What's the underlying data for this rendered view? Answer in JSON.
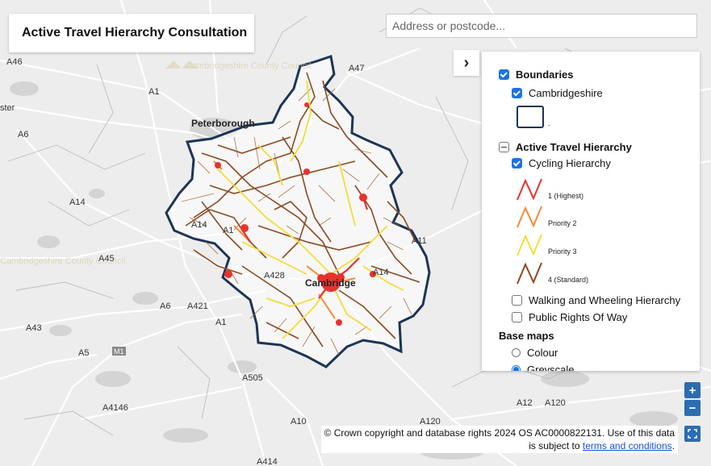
{
  "title": "Active Travel Hierarchy Consultation",
  "search": {
    "placeholder": "Address or postcode..."
  },
  "panel": {
    "collapse_icon": "›",
    "boundaries": {
      "label": "Boundaries",
      "checked": true,
      "items": [
        {
          "label": "Cambridgeshire",
          "checked": true
        }
      ]
    },
    "boundary_swatch_label": ".",
    "active_travel": {
      "label": "Active Travel Hierarchy",
      "state": "partial",
      "cycling": {
        "label": "Cycling Hierarchy",
        "checked": true,
        "legend": [
          {
            "label": "1 (Highest)",
            "color": "#e8322c"
          },
          {
            "label": "Priority 2",
            "color": "#f58a37"
          },
          {
            "label": "Priority 3",
            "color": "#f3dd3a"
          },
          {
            "label": "4 (Standard)",
            "color": "#8b4a22"
          }
        ]
      },
      "walking": {
        "label": "Walking and Wheeling Hierarchy",
        "checked": false
      },
      "prow": {
        "label": "Public Rights Of Way",
        "checked": false
      }
    },
    "base_maps": {
      "label": "Base maps",
      "options": [
        {
          "label": "Colour",
          "selected": false
        },
        {
          "label": "Greyscale",
          "selected": true
        }
      ]
    }
  },
  "map": {
    "labels": {
      "a46": "A46",
      "a47": "A47",
      "a1_n": "A1",
      "ster": "ster",
      "a6_n": "A6",
      "peterborough": "Peterborough",
      "a14_w": "A14",
      "a14_c": "A14",
      "a1_c": "A1",
      "a45": "A45",
      "a428": "A428",
      "cambridge": "Cambridge",
      "a14_e": "A14",
      "a11": "A11",
      "a6_s": "A6",
      "a421": "A421",
      "a1_s": "A1",
      "a43": "A43",
      "a5": "A5",
      "m1": "M1",
      "a505": "A505",
      "a4146": "A4146",
      "a10": "A10",
      "a120": "A120",
      "a12": "A12",
      "a120_e": "A120",
      "a414": "A414",
      "ccc1": "Cambridgeshire County Council",
      "ccc2": "Cambridgeshire County Council"
    },
    "boundary_color": "#1c3557"
  },
  "controls": {
    "zoom_in": "+",
    "zoom_out": "−"
  },
  "attribution": {
    "text": "© Crown copyright and database rights 2024 OS AC0000822131. Use of this data is subject to",
    "link": "terms and conditions",
    "end": "."
  }
}
